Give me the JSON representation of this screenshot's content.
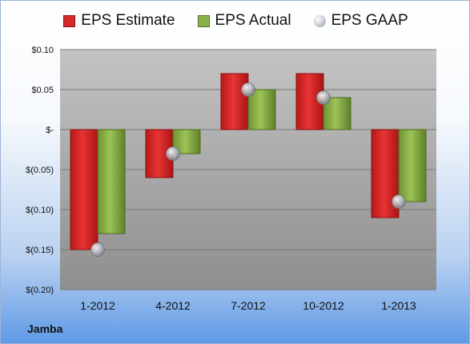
{
  "chart_data": {
    "type": "bar",
    "categories": [
      "1-2012",
      "4-2012",
      "7-2012",
      "10-2012",
      "1-2013"
    ],
    "series": [
      {
        "name": "EPS Estimate",
        "type": "bar",
        "color": "#d42a2a",
        "values": [
          -0.15,
          -0.06,
          0.07,
          0.07,
          -0.11
        ]
      },
      {
        "name": "EPS Actual",
        "type": "bar",
        "color": "#8bb04a",
        "values": [
          -0.13,
          -0.03,
          0.05,
          0.04,
          -0.09
        ]
      },
      {
        "name": "EPS GAAP",
        "type": "marker",
        "color": "#b8bcc4",
        "values": [
          -0.15,
          -0.03,
          0.05,
          0.04,
          -0.09
        ]
      }
    ],
    "ylim": [
      -0.2,
      0.1
    ],
    "ytick_values": [
      0.1,
      0.05,
      0,
      -0.05,
      -0.1,
      -0.15,
      -0.2
    ],
    "ytick_labels": [
      "$0.10",
      "$0.05",
      "$-",
      "$(0.05)",
      "$(0.10)",
      "$(0.15)",
      "$(0.20)"
    ],
    "grid": true,
    "legend_position": "top-center",
    "title": "",
    "xlabel": "",
    "ylabel": ""
  },
  "legend": {
    "estimate_label": "EPS Estimate",
    "actual_label": "EPS Actual",
    "gaap_label": "EPS GAAP"
  },
  "company_name": "Jamba"
}
